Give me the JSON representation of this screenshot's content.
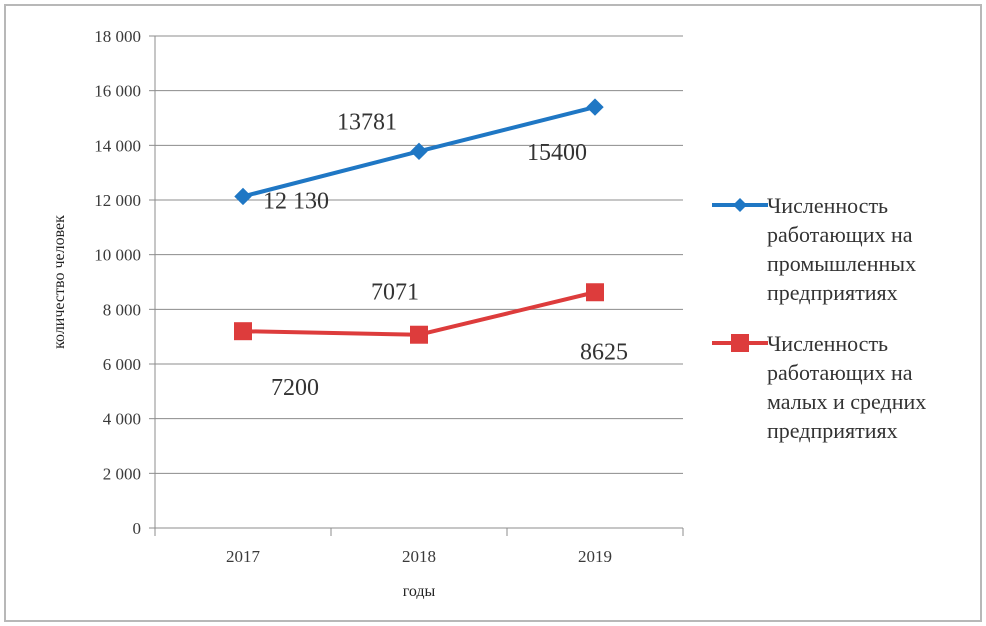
{
  "chart_data": {
    "type": "line",
    "categories": [
      "2017",
      "2018",
      "2019"
    ],
    "xlabel": "годы",
    "ylabel": "количество человек",
    "ylim": [
      0,
      18000
    ],
    "yticks": [
      "0",
      "2 000",
      "4 000",
      "6 000",
      "8 000",
      "10 000",
      "12 000",
      "14 000",
      "16 000",
      "18 000"
    ],
    "grid": true,
    "legend_position": "right",
    "series": [
      {
        "name": "Численность работающих на промышленных предприятиях",
        "values": [
          12130,
          13781,
          15400
        ],
        "data_labels": [
          "12 130",
          "13781",
          "15400"
        ],
        "color": "#1f77c4",
        "marker": "diamond"
      },
      {
        "name": "Численность работающих на малых и средних предприятиях",
        "values": [
          7200,
          7071,
          8625
        ],
        "data_labels": [
          "7200",
          "7071",
          "8625"
        ],
        "color": "#dd3c3c",
        "marker": "square"
      }
    ],
    "legend_lines": [
      [
        "Численность",
        "работающих на",
        "промышленных",
        "предприятиях"
      ],
      [
        "Численность",
        "работающих на",
        "малых и средних",
        "предприятиях"
      ]
    ]
  }
}
